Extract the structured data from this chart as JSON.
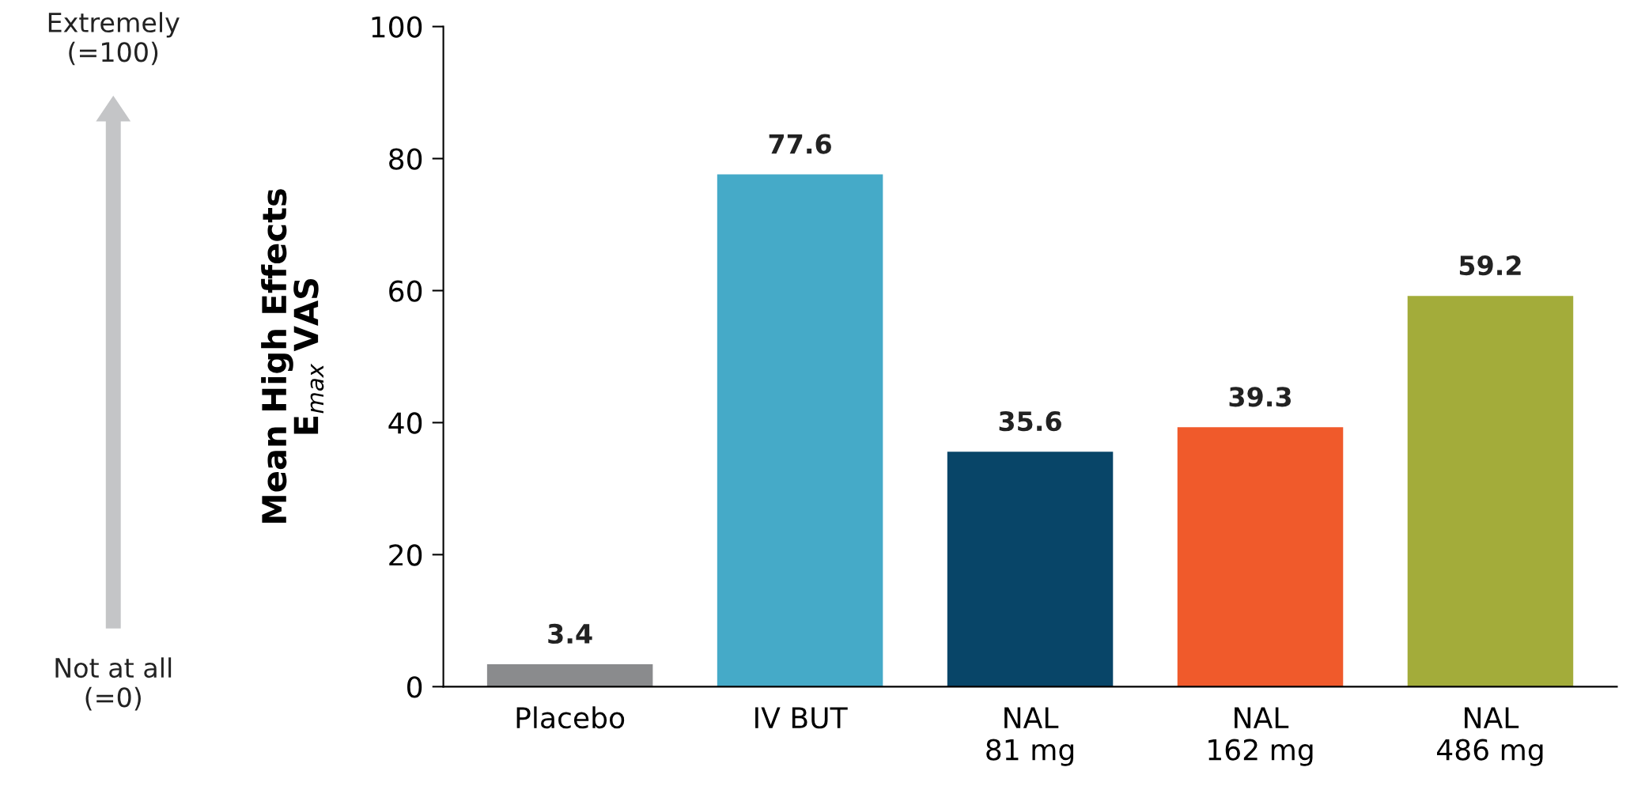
{
  "chart_data": {
    "type": "bar",
    "ylabel": "Mean High Effects\nE$_{max}$ VAS",
    "categories": [
      "Placebo",
      "IV BUT",
      "NAL\n81 mg",
      "NAL\n162 mg",
      "NAL\n486 mg"
    ],
    "values": [
      3.4,
      77.6,
      35.6,
      39.3,
      59.2
    ],
    "colors": [
      "#8a8b8d",
      "#45aac8",
      "#084568",
      "#f05a2b",
      "#a3ac3a"
    ],
    "ylim": [
      0,
      100
    ],
    "yticks": [
      0,
      20,
      40,
      60,
      80,
      100
    ],
    "data_labels": true,
    "grid": false,
    "legend": false,
    "annotations": [
      "Extremely\n(=100)",
      "Not at all\n(=0)"
    ]
  }
}
